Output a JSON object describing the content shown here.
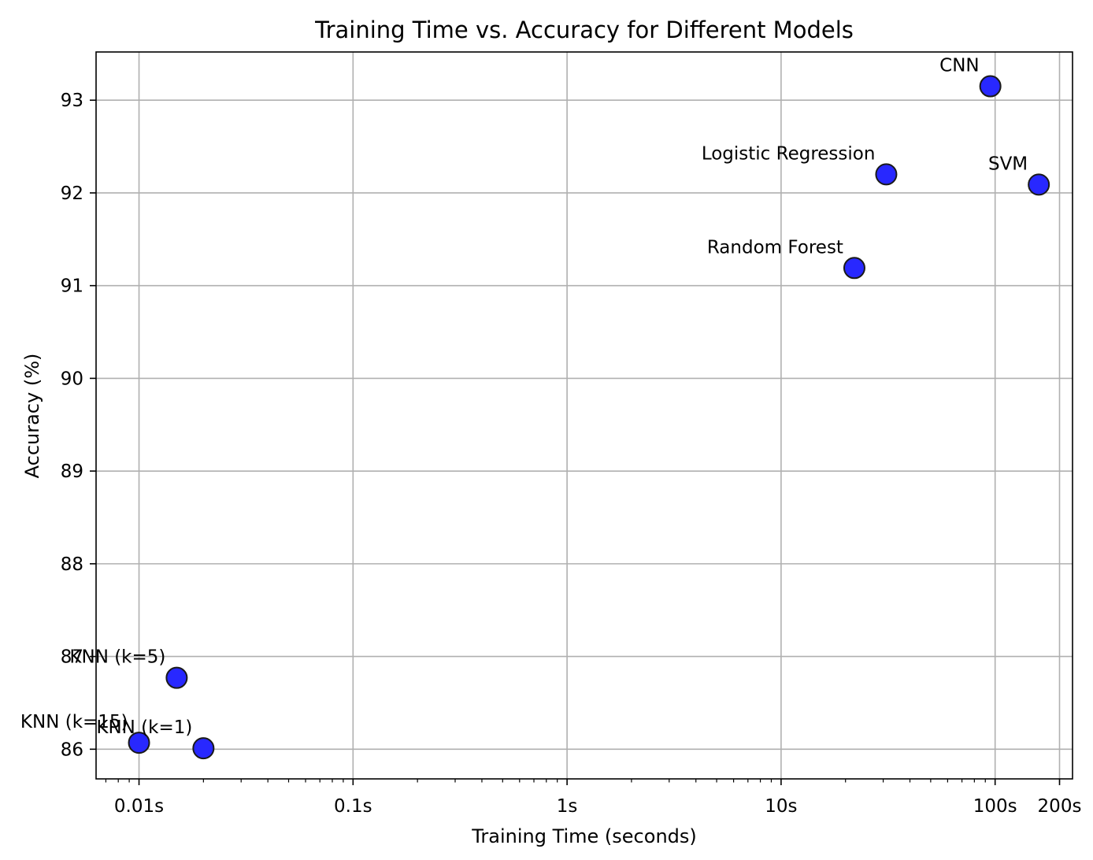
{
  "chart_data": {
    "type": "scatter",
    "title": "Training Time vs. Accuracy for Different Models",
    "xlabel": "Training Time (seconds)",
    "ylabel": "Accuracy (%)",
    "x_scale": "log",
    "xlim": [
      0.0063,
      230
    ],
    "ylim": [
      85.68,
      93.52
    ],
    "grid": true,
    "x_ticks": [
      {
        "value": 0.01,
        "label": "0.01s"
      },
      {
        "value": 0.1,
        "label": "0.1s"
      },
      {
        "value": 1,
        "label": "1s"
      },
      {
        "value": 10,
        "label": "10s"
      },
      {
        "value": 100,
        "label": "100s"
      },
      {
        "value": 200,
        "label": "200s"
      }
    ],
    "y_ticks": [
      {
        "value": 86,
        "label": "86"
      },
      {
        "value": 87,
        "label": "87"
      },
      {
        "value": 88,
        "label": "88"
      },
      {
        "value": 89,
        "label": "89"
      },
      {
        "value": 90,
        "label": "90"
      },
      {
        "value": 91,
        "label": "91"
      },
      {
        "value": 92,
        "label": "92"
      },
      {
        "value": 93,
        "label": "93"
      }
    ],
    "marker_color": "#2828ff",
    "marker_edge_color": "#1a1a1a",
    "points": [
      {
        "label": "KNN (k=1)",
        "x": 0.02,
        "y": 86.01
      },
      {
        "label": "KNN (k=5)",
        "x": 0.015,
        "y": 86.77
      },
      {
        "label": "KNN (k=15)",
        "x": 0.01,
        "y": 86.07
      },
      {
        "label": "Logistic Regression",
        "x": 31,
        "y": 92.2
      },
      {
        "label": "Random Forest",
        "x": 22,
        "y": 91.19
      },
      {
        "label": "SVM",
        "x": 160,
        "y": 92.09
      },
      {
        "label": "CNN",
        "x": 95,
        "y": 93.15
      }
    ]
  }
}
